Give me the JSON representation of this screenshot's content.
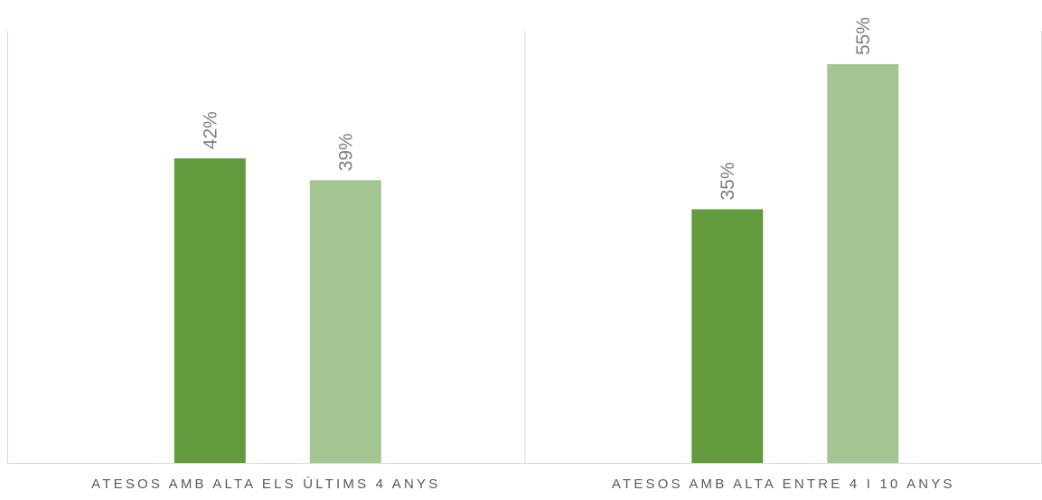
{
  "chart_data": {
    "type": "bar",
    "title": "",
    "xlabel": "",
    "ylabel": "",
    "categories": [
      "ATESOS AMB ALTA ELS ÚLTIMS 4 ANYS",
      "ATESOS AMB ALTA ENTRE 4 I 10 ANYS"
    ],
    "series": [
      {
        "values": [
          42,
          35
        ],
        "labels": [
          "42%",
          "35%"
        ]
      },
      {
        "values": [
          39,
          55
        ],
        "labels": [
          "39%",
          "55%"
        ]
      }
    ],
    "value_unit": "%",
    "ylim": [
      0,
      63.4
    ],
    "grid": false,
    "legend": "none",
    "axis_visible": false,
    "category_dividers": true
  },
  "colors": {
    "series": [
      "#629a3e",
      "#a3c592"
    ],
    "data_label": "#7f7f7f",
    "category_label": "#595959",
    "axis_line": "#d9d9d9"
  }
}
